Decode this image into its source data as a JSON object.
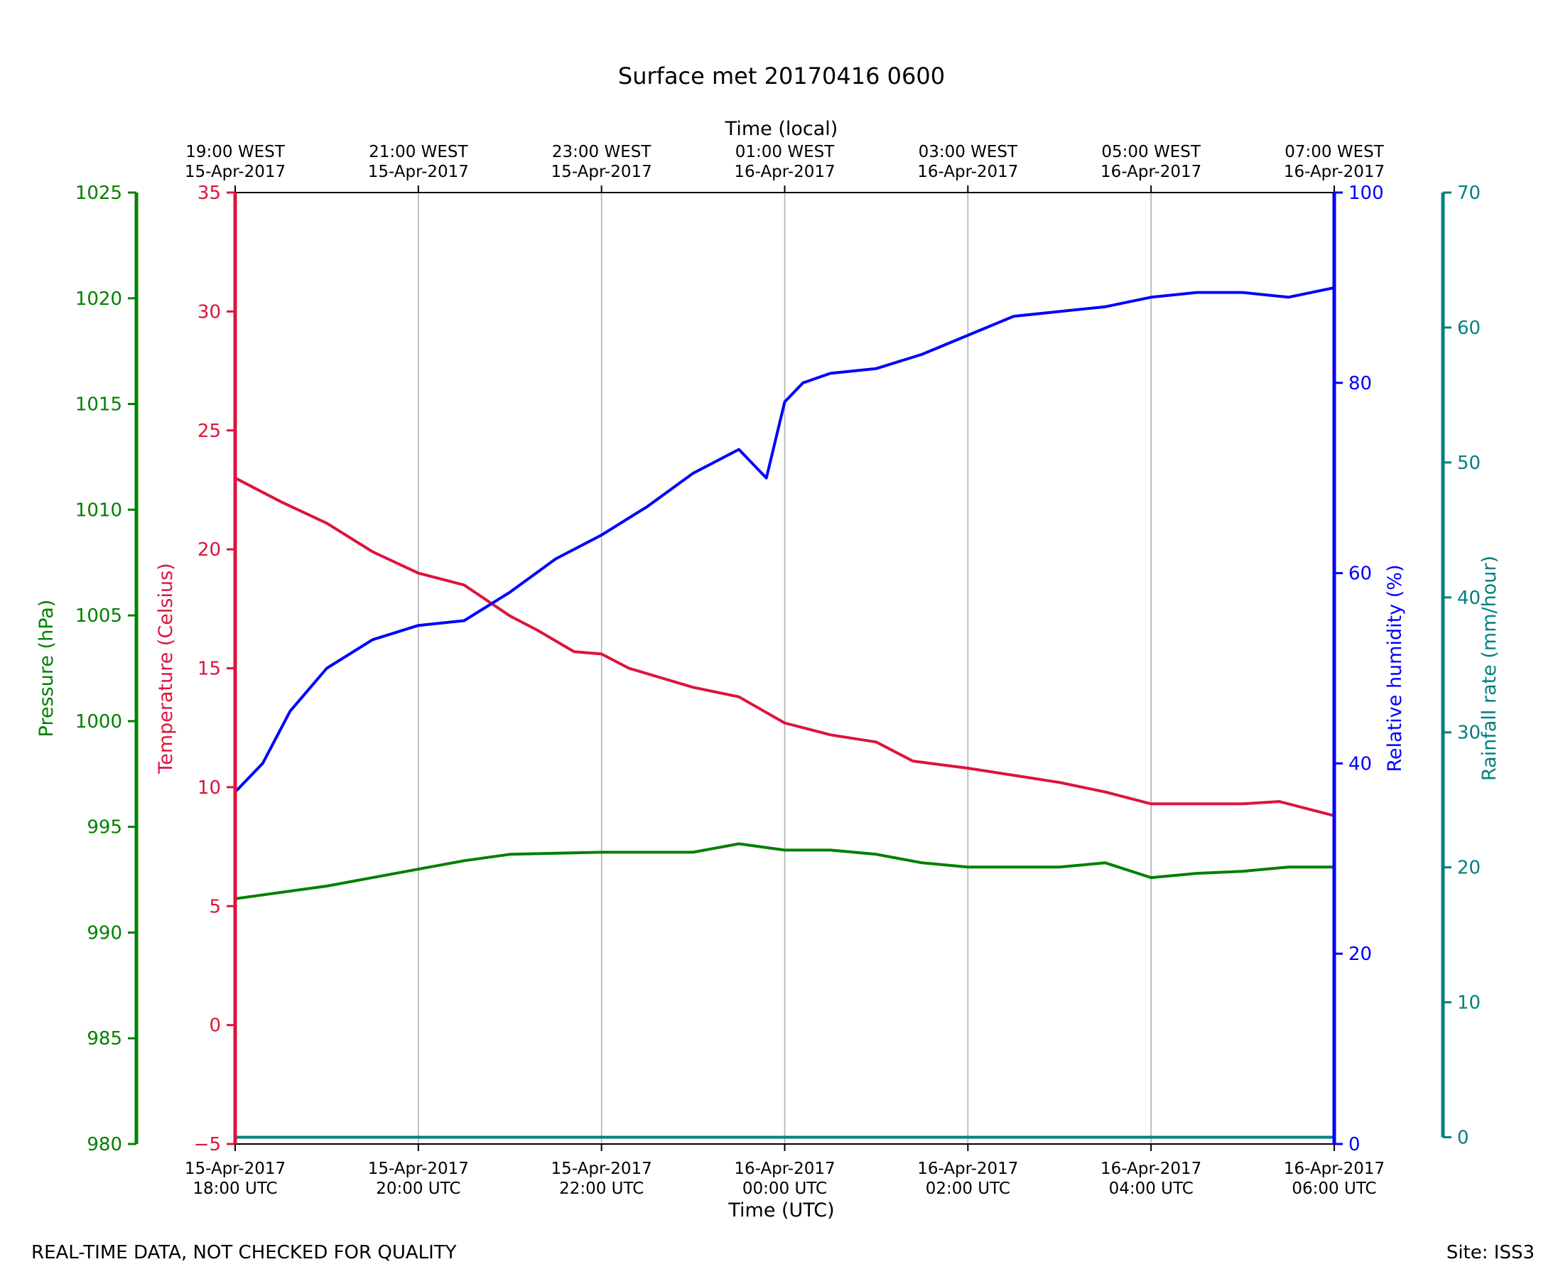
{
  "title": "Surface met 20170416 0600",
  "footer": {
    "left": "REAL-TIME DATA, NOT CHECKED FOR QUALITY",
    "right": "Site: ISS3"
  },
  "colors": {
    "temperature": "#dc143c",
    "humidity": "#0000ff",
    "pressure": "#008000",
    "rainfall": "#008080",
    "grid": "#b0b0b0"
  },
  "chart_data": {
    "type": "line",
    "title": "Surface met 20170416 0600",
    "xlabel": "Time (UTC)",
    "x2label": "Time (local)",
    "xlim": [
      0,
      6
    ],
    "x_unit": "hours after 15-Apr-2017 18:00 UTC",
    "x_ticks": [
      {
        "x": 0,
        "utc": [
          "15-Apr-2017",
          "18:00 UTC"
        ],
        "local": [
          "19:00 WEST",
          "15-Apr-2017"
        ]
      },
      {
        "x": 1,
        "utc": [
          "15-Apr-2017",
          "20:00 UTC"
        ],
        "local": [
          "21:00 WEST",
          "15-Apr-2017"
        ]
      },
      {
        "x": 2,
        "utc": [
          "15-Apr-2017",
          "22:00 UTC"
        ],
        "local": [
          "23:00 WEST",
          "15-Apr-2017"
        ]
      },
      {
        "x": 3,
        "utc": [
          "16-Apr-2017",
          "00:00 UTC"
        ],
        "local": [
          "01:00 WEST",
          "16-Apr-2017"
        ]
      },
      {
        "x": 4,
        "utc": [
          "16-Apr-2017",
          "02:00 UTC"
        ],
        "local": [
          "03:00 WEST",
          "16-Apr-2017"
        ]
      },
      {
        "x": 5,
        "utc": [
          "16-Apr-2017",
          "04:00 UTC"
        ],
        "local": [
          "05:00 WEST",
          "16-Apr-2017"
        ]
      },
      {
        "x": 6,
        "utc": [
          "16-Apr-2017",
          "06:00 UTC"
        ],
        "local": [
          "07:00 WEST",
          "16-Apr-2017"
        ]
      }
    ],
    "grid": "vertical",
    "axes": {
      "temperature": {
        "label": "Temperature (Celsius)",
        "ylim": [
          -5,
          35
        ],
        "ticks": [
          -5,
          0,
          5,
          10,
          15,
          20,
          25,
          30,
          35
        ],
        "tick_labels": [
          "−5",
          "0",
          "5",
          "10",
          "15",
          "20",
          "25",
          "30",
          "35"
        ]
      },
      "pressure": {
        "label": "Pressure (hPa)",
        "ylim": [
          980,
          1025
        ],
        "ticks": [
          980,
          985,
          990,
          995,
          1000,
          1005,
          1010,
          1015,
          1020,
          1025
        ]
      },
      "humidity": {
        "label": "Relative humidity (%)",
        "ylim": [
          0,
          100
        ],
        "ticks": [
          0,
          20,
          40,
          60,
          80,
          100
        ]
      },
      "rainfall": {
        "label": "Rainfall rate (mm/hour)",
        "ylim": [
          -0.5,
          70
        ],
        "ticks": [
          0,
          10,
          20,
          30,
          40,
          50,
          60,
          70
        ]
      }
    },
    "series": [
      {
        "name": "Temperature (Celsius)",
        "axis": "temperature",
        "x": [
          0,
          0.25,
          0.5,
          0.75,
          1.0,
          1.25,
          1.5,
          1.65,
          1.85,
          2.0,
          2.15,
          2.5,
          2.75,
          3.0,
          3.25,
          3.5,
          3.7,
          4.0,
          4.25,
          4.5,
          4.75,
          5.0,
          5.25,
          5.5,
          5.7,
          6.0
        ],
        "values": [
          23.0,
          22.0,
          21.1,
          19.9,
          19.0,
          18.5,
          17.2,
          16.6,
          15.7,
          15.6,
          15.0,
          14.2,
          13.8,
          12.7,
          12.2,
          11.9,
          11.1,
          10.8,
          10.5,
          10.2,
          9.8,
          9.3,
          9.3,
          9.3,
          9.4,
          8.8
        ]
      },
      {
        "name": "Relative humidity (%)",
        "axis": "humidity",
        "x": [
          0,
          0.15,
          0.3,
          0.5,
          0.75,
          1.0,
          1.25,
          1.5,
          1.75,
          2.0,
          2.25,
          2.5,
          2.75,
          2.9,
          3.0,
          3.1,
          3.25,
          3.5,
          3.75,
          4.0,
          4.25,
          4.5,
          4.75,
          5.0,
          5.25,
          5.5,
          5.75,
          6.0
        ],
        "values": [
          37.0,
          40.0,
          45.5,
          50.0,
          53.0,
          54.5,
          55.0,
          58.0,
          61.5,
          64.0,
          67.0,
          70.5,
          73.0,
          70.0,
          78.0,
          80.0,
          81.0,
          81.5,
          83.0,
          85.0,
          87.0,
          87.5,
          88.0,
          89.0,
          89.5,
          89.5,
          89.0,
          90.0
        ]
      },
      {
        "name": "Pressure (hPa)",
        "axis": "pressure",
        "x": [
          0,
          0.5,
          1.0,
          1.25,
          1.5,
          2.0,
          2.5,
          2.75,
          3.0,
          3.25,
          3.5,
          3.75,
          4.0,
          4.25,
          4.5,
          4.75,
          5.0,
          5.25,
          5.5,
          5.75,
          6.0
        ],
        "values": [
          991.6,
          992.2,
          993.0,
          993.4,
          993.7,
          993.8,
          993.8,
          994.2,
          993.9,
          993.9,
          993.7,
          993.3,
          993.1,
          993.1,
          993.1,
          993.3,
          992.6,
          992.8,
          992.9,
          993.1,
          993.1
        ]
      },
      {
        "name": "Rainfall rate (mm/hour)",
        "axis": "rainfall",
        "x": [
          0,
          6
        ],
        "values": [
          0,
          0
        ]
      }
    ]
  }
}
